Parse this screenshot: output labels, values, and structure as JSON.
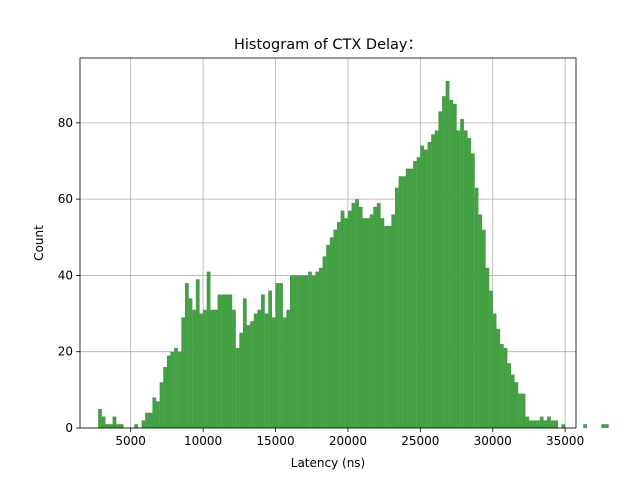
{
  "chart_data": {
    "type": "bar",
    "title": "Histogram of CTX Delay：",
    "xlabel": "Latency (ns)",
    "ylabel": "Count",
    "xlim": [
      1500,
      35750
    ],
    "ylim": [
      0,
      97
    ],
    "xticks": [
      5000,
      10000,
      15000,
      20000,
      25000,
      30000,
      35000
    ],
    "yticks": [
      0,
      20,
      40,
      60,
      80
    ],
    "grid": true,
    "bar_color": "#43a043",
    "bin_width": 250,
    "bin_start": 2750,
    "counts": [
      5,
      3,
      1,
      1,
      3,
      1,
      1,
      0,
      0,
      0,
      1,
      0,
      2,
      4,
      4,
      8,
      7,
      12,
      16,
      19,
      20,
      21,
      20,
      29,
      38,
      34,
      31,
      39,
      30,
      31,
      41,
      31,
      31,
      35,
      35,
      35,
      35,
      31,
      21,
      25,
      34,
      27,
      28,
      30,
      31,
      35,
      30,
      36,
      29,
      38,
      38,
      29,
      31,
      40,
      40,
      40,
      40,
      40,
      41,
      40,
      41,
      42,
      45,
      48,
      50,
      52,
      54,
      57,
      55,
      57,
      59,
      60,
      58,
      55,
      55,
      56,
      58,
      59,
      55,
      53,
      53,
      56,
      63,
      66,
      66,
      68,
      68,
      70,
      71,
      74,
      73,
      75,
      77,
      78,
      83,
      87,
      91,
      86,
      85,
      78,
      81,
      78,
      76,
      72,
      63,
      56,
      52,
      42,
      36,
      30,
      26,
      22,
      21,
      17,
      14,
      12,
      9,
      9,
      3,
      2,
      2,
      2,
      3,
      2,
      3,
      2,
      2,
      0,
      1,
      0,
      0,
      0,
      0,
      0,
      1,
      0,
      0,
      0,
      0,
      1,
      1
    ]
  }
}
